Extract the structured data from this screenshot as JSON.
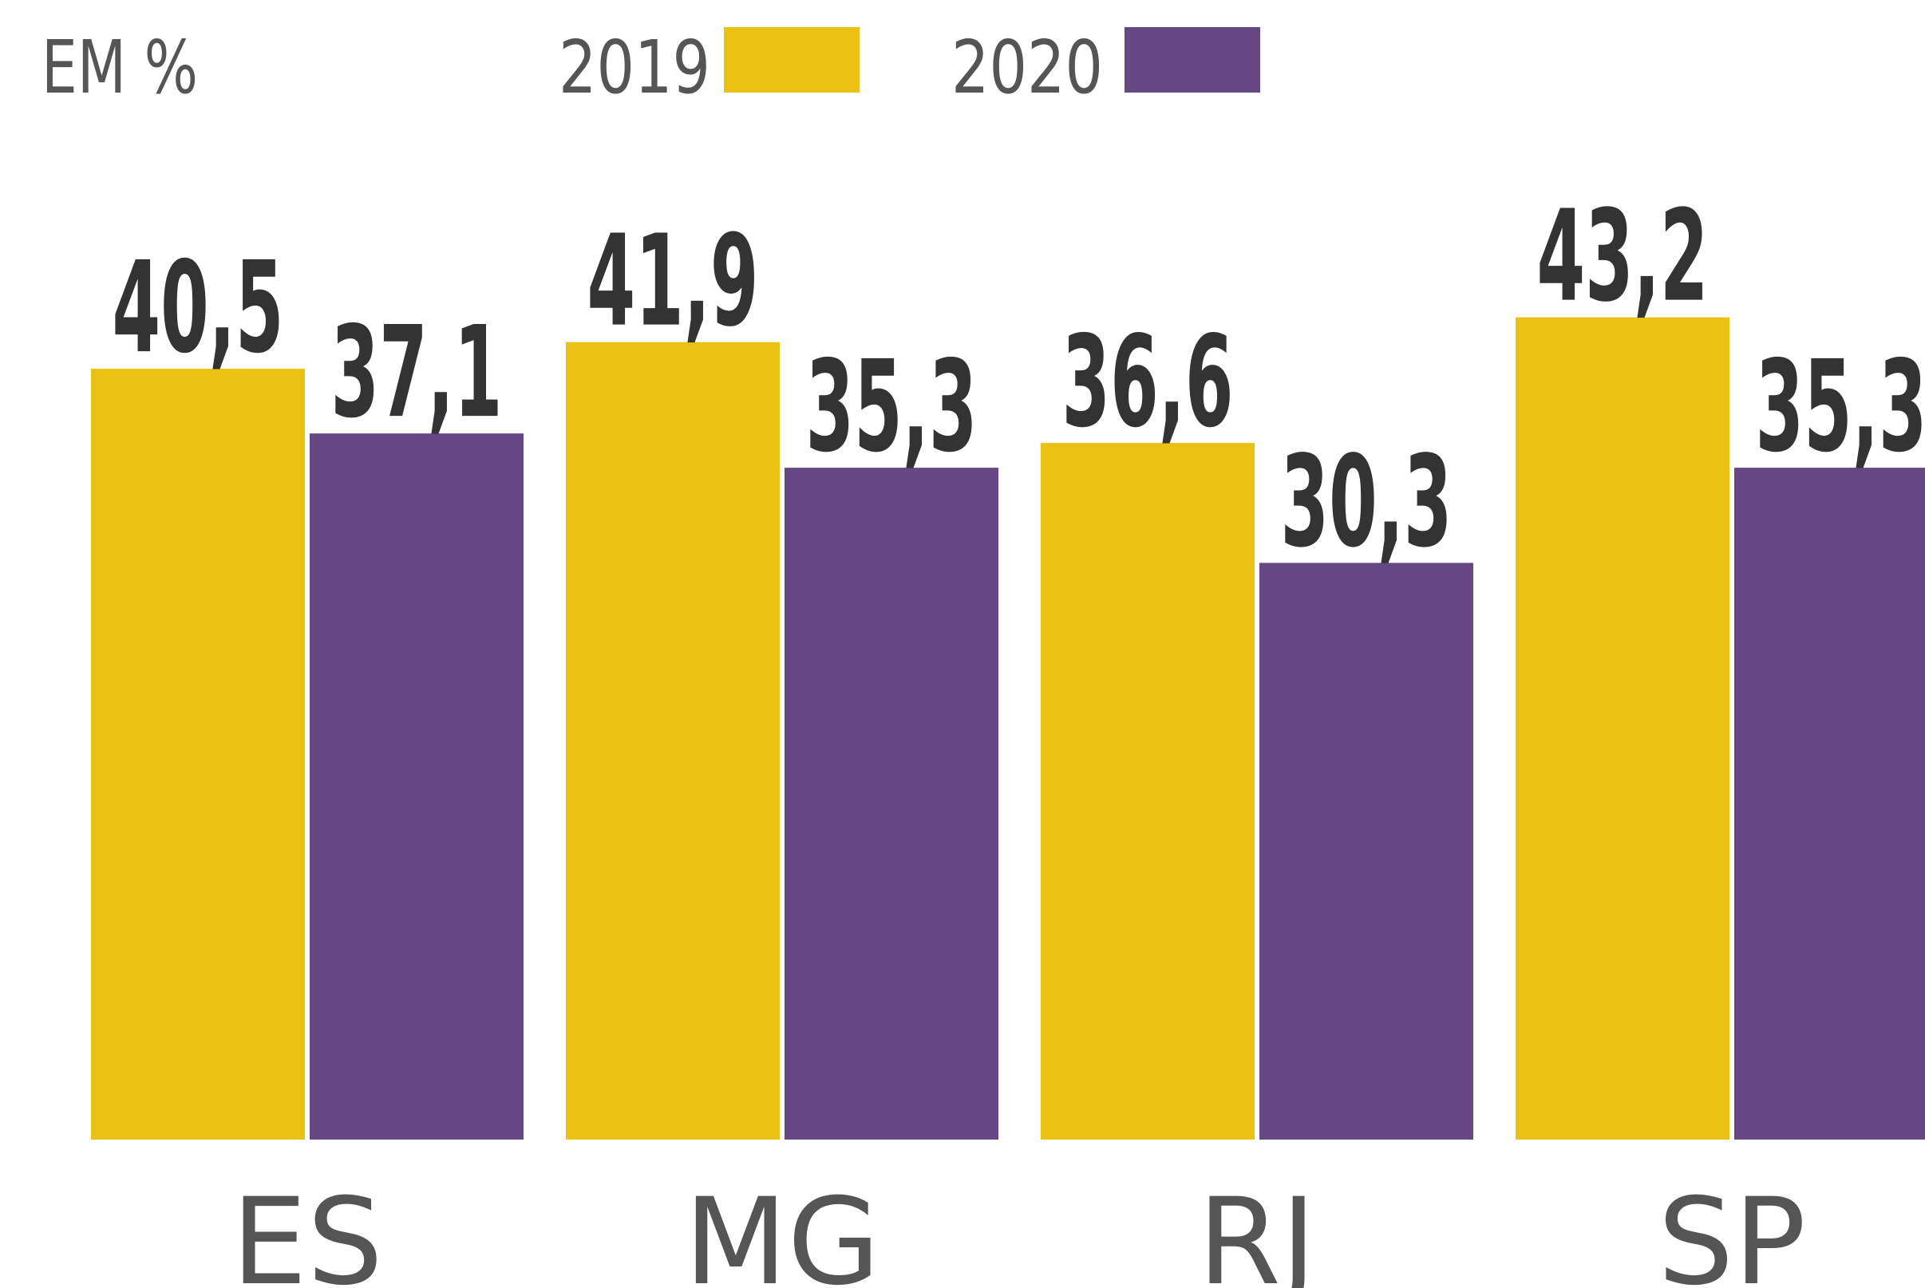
{
  "chart_data": {
    "type": "bar",
    "subtitle": "EM %",
    "categories": [
      "ES",
      "MG",
      "RJ",
      "SP"
    ],
    "series": [
      {
        "name": "2019",
        "color": "#ebc114",
        "values": [
          40.5,
          41.9,
          36.6,
          43.2
        ],
        "value_labels": [
          "40,5",
          "41,9",
          "36,6",
          "43,2"
        ]
      },
      {
        "name": "2020",
        "color": "#654883",
        "values": [
          37.1,
          35.3,
          30.3,
          35.3
        ],
        "value_labels": [
          "37,1",
          "35,3",
          "30,3",
          "35,3"
        ]
      }
    ]
  }
}
